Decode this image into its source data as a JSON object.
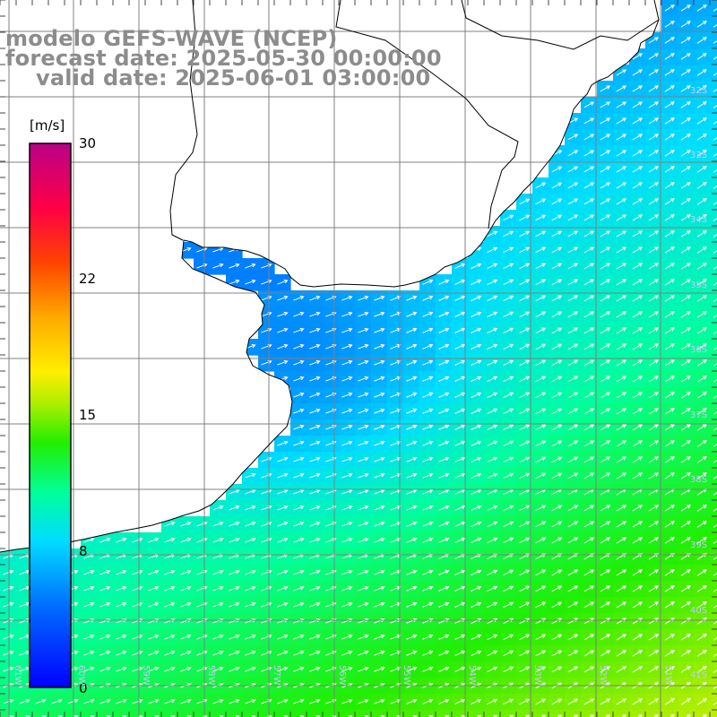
{
  "title": {
    "model": "modelo GEFS-WAVE (NCEP)",
    "forecast": "forecast date: 2025-05-30 00:00:00",
    "valid": "valid date: 2025-06-01 03:00:00"
  },
  "colorbar": {
    "unit": "[m/s]",
    "ticks": [
      "30",
      "22",
      "15",
      "8",
      "0"
    ],
    "tick_values": [
      30,
      22,
      15,
      8,
      0
    ],
    "range": [
      0,
      30
    ],
    "colors": [
      "#0000ff",
      "#0088ff",
      "#00ddff",
      "#00ff88",
      "#00ee00",
      "#ccee00",
      "#ffee00",
      "#ff9900",
      "#ff2200",
      "#ff0066",
      "#bb0088"
    ]
  },
  "map": {
    "lat_labels": [
      "32S",
      "33S",
      "34S",
      "35S",
      "36S",
      "37S",
      "38S",
      "39S",
      "40S",
      "41S"
    ],
    "lon_labels": [
      "61W",
      "60W",
      "59W",
      "58W",
      "57W",
      "56W",
      "55W",
      "54W",
      "53W",
      "52W",
      "51W"
    ],
    "lat_range": [
      -41.3,
      -30.7
    ],
    "lon_range": [
      -61.2,
      -50.3
    ],
    "grid": true,
    "field": "wind speed with direction arrows",
    "land_color": "#ffffff",
    "coast_color": "#000000",
    "grid_color": "#808080",
    "arrow_color": "#ffffff"
  }
}
